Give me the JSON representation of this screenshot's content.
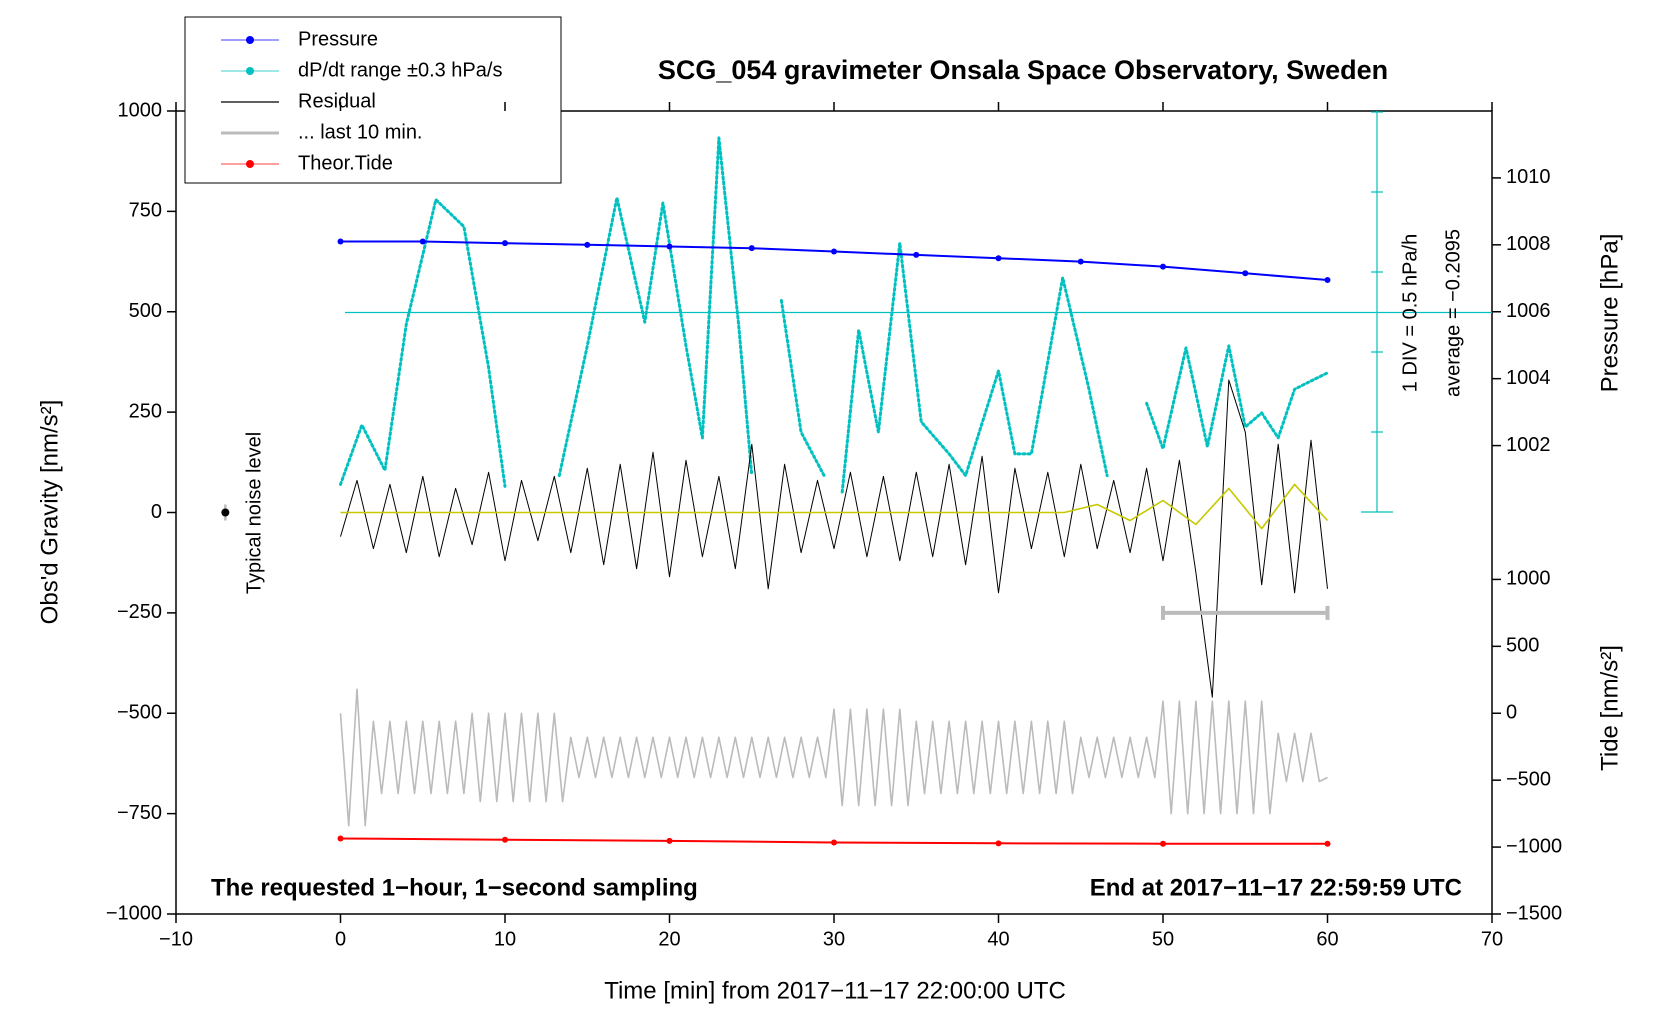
{
  "chart_data": {
    "type": "line",
    "title": "SCG_054 gravimeter Onsala Space Observatory, Sweden",
    "xlabel": "Time [min] from 2017−11−17 22:00:00 UTC",
    "ylabel": "Obs'd Gravity [nm/s²]",
    "y2label": "Pressure [hPa]",
    "y3label": "Tide [nm/s²]",
    "annotations": [
      "The requested 1−hour, 1−second sampling",
      "End at 2017−11−17 22:59:59 UTC",
      "1 DIV = 0.5 hPa/h",
      "average = −0.2095"
    ],
    "noise_level": {
      "label": "Typical noise level",
      "x": {
        "value": -7,
        "label": "−7"
      },
      "value": 0,
      "error": 20
    },
    "xlim": [
      -10,
      70
    ],
    "xticks": [
      {
        "value": -10,
        "label": "−10"
      },
      0,
      10,
      20,
      30,
      40,
      50,
      60,
      70
    ],
    "ylim": [
      -1000,
      1000
    ],
    "yticks": [
      {
        "value": -1000,
        "label": "−1000"
      },
      {
        "value": -750,
        "label": "−750"
      },
      {
        "value": -500,
        "label": "−500"
      },
      {
        "value": -250,
        "label": "−250"
      },
      0,
      250,
      500,
      750,
      1000
    ],
    "y2lim": [
      988,
      1012
    ],
    "y2ticks": [
      1002,
      1004,
      1006,
      1008,
      1010
    ],
    "y3lim": [
      -1500,
      4500
    ],
    "y3ticks": [
      {
        "value": -1500,
        "label": "−1500"
      },
      {
        "value": -1000,
        "label": "−1000"
      },
      {
        "value": -500,
        "label": "−500"
      },
      0,
      500,
      1000
    ],
    "series": [
      {
        "name": "Pressure",
        "color": "#0000ff",
        "axis": "y2",
        "marker": true,
        "x": [
          0,
          5,
          10,
          15,
          20,
          25,
          30,
          35,
          40,
          45,
          50,
          55,
          60
        ],
        "values": [
          1008.1,
          1008.1,
          1008.05,
          1008.0,
          1007.95,
          1007.9,
          1007.8,
          1007.7,
          1007.6,
          1007.5,
          1007.35,
          1007.15,
          1006.95
        ]
      },
      {
        "name": "dP/dt range ±0.3 hPa/s",
        "color": "#00c0c0",
        "axis": "y",
        "marker": true,
        "dotted": true,
        "x": [
          0,
          1.3,
          2.7,
          4,
          5.8,
          7.5,
          9,
          10,
          11.5,
          13.3,
          15,
          16.8,
          18.5,
          19.6,
          21,
          22,
          23,
          24.2,
          25,
          26,
          26.8,
          28,
          29.4,
          30,
          30.5,
          31.5,
          32.7,
          34,
          35.3,
          37,
          38,
          40,
          41,
          42,
          43.9,
          45.5,
          46.6,
          48,
          49,
          50,
          51.4,
          52.7,
          54,
          55,
          56,
          57,
          58,
          60
        ],
        "values": [
          70,
          218,
          105,
          469,
          779,
          712,
          361,
          65,
          null,
          92,
          415,
          784,
          474,
          771,
          415,
          186,
          933,
          469,
          92,
          null,
          528,
          200,
          92,
          null,
          51,
          455,
          200,
          671,
          226,
          146,
          92,
          353,
          146,
          146,
          585,
          307,
          92,
          null,
          272,
          159,
          410,
          164,
          415,
          213,
          248,
          186,
          307,
          348
        ]
      },
      {
        "name": "Residual",
        "color": "#000000",
        "axis": "y",
        "x": [
          0,
          1,
          2,
          3,
          4,
          5,
          6,
          7,
          8,
          9,
          10,
          11,
          12,
          13,
          14,
          15,
          16,
          17,
          18,
          19,
          20,
          21,
          22,
          23,
          24,
          25,
          26,
          27,
          28,
          29,
          30,
          31,
          32,
          33,
          34,
          35,
          36,
          37,
          38,
          39,
          40,
          41,
          42,
          43,
          44,
          45,
          46,
          47,
          48,
          49,
          50,
          51,
          52,
          53,
          54,
          55,
          56,
          57,
          58,
          59,
          60
        ],
        "values": [
          -60,
          80,
          -90,
          70,
          -100,
          90,
          -110,
          60,
          -80,
          100,
          -120,
          80,
          -70,
          90,
          -100,
          110,
          -130,
          120,
          -140,
          150,
          -160,
          130,
          -110,
          90,
          -140,
          170,
          -190,
          120,
          -100,
          80,
          -90,
          100,
          -110,
          90,
          -120,
          100,
          -110,
          120,
          -130,
          140,
          -200,
          110,
          -90,
          100,
          -110,
          120,
          -90,
          80,
          -100,
          110,
          -120,
          130,
          -150,
          -460,
          330,
          200,
          -180,
          170,
          -200,
          180,
          -190
        ]
      },
      {
        "name": "... last 10 min.",
        "color": "#bbbbbb",
        "axis": "y",
        "caps": true,
        "x": [
          50,
          60
        ],
        "values": [
          -250,
          -250
        ]
      },
      {
        "name": "Theor.Tide",
        "color": "#ff0000",
        "axis": "y",
        "marker": true,
        "x": [
          0,
          10,
          20,
          30,
          40,
          50,
          60
        ],
        "values": [
          -812,
          -815,
          -818,
          -822,
          -824,
          -825,
          -825
        ]
      },
      {
        "color": "#bbbbbb",
        "axis": "y",
        "x": [
          0,
          0.5,
          1,
          1.5,
          2,
          2.5,
          3,
          3.5,
          4,
          4.5,
          5,
          5.5,
          6,
          6.5,
          7,
          7.5,
          8,
          8.5,
          9,
          9.5,
          10,
          10.5,
          11,
          11.5,
          12,
          12.5,
          13,
          13.5,
          14,
          14.5,
          15,
          15.5,
          16,
          16.5,
          17,
          17.5,
          18,
          18.5,
          19,
          19.5,
          20,
          20.5,
          21,
          21.5,
          22,
          22.5,
          23,
          23.5,
          24,
          24.5,
          25,
          25.5,
          26,
          26.5,
          27,
          27.5,
          28,
          28.5,
          29,
          29.5,
          30,
          30.5,
          31,
          31.5,
          32,
          32.5,
          33,
          33.5,
          34,
          34.5,
          35,
          35.5,
          36,
          36.5,
          37,
          37.5,
          38,
          38.5,
          39,
          39.5,
          40,
          40.5,
          41,
          41.5,
          42,
          42.5,
          43,
          43.5,
          44,
          44.5,
          45,
          45.5,
          46,
          46.5,
          47,
          47.5,
          48,
          48.5,
          49,
          49.5,
          50,
          50.5,
          51,
          51.5,
          52,
          52.5,
          53,
          53.5,
          54,
          54.5,
          55,
          55.5,
          56,
          56.5,
          57,
          57.5,
          58,
          58.5,
          59,
          59.5,
          60
        ],
        "values": [
          -500,
          -780,
          -440,
          -780,
          -520,
          -700,
          -520,
          -700,
          -520,
          -700,
          -520,
          -700,
          -520,
          -700,
          -520,
          -700,
          -500,
          -720,
          -500,
          -720,
          -500,
          -720,
          -500,
          -720,
          -500,
          -720,
          -500,
          -720,
          -560,
          -660,
          -560,
          -660,
          -560,
          -660,
          -560,
          -660,
          -560,
          -660,
          -560,
          -660,
          -560,
          -660,
          -560,
          -660,
          -560,
          -660,
          -560,
          -660,
          -560,
          -660,
          -560,
          -660,
          -560,
          -660,
          -560,
          -660,
          -560,
          -660,
          -560,
          -660,
          -490,
          -730,
          -490,
          -730,
          -490,
          -730,
          -490,
          -730,
          -490,
          -730,
          -520,
          -700,
          -520,
          -700,
          -520,
          -700,
          -520,
          -700,
          -520,
          -700,
          -520,
          -700,
          -520,
          -700,
          -520,
          -700,
          -520,
          -700,
          -520,
          -700,
          -560,
          -660,
          -560,
          -660,
          -560,
          -660,
          -560,
          -660,
          -560,
          -660,
          -470,
          -750,
          -470,
          -750,
          -470,
          -750,
          -470,
          -750,
          -470,
          -750,
          -470,
          -750,
          -470,
          -750,
          -550,
          -670,
          -550,
          -670,
          -550,
          -670,
          -660
        ]
      },
      {
        "color": "#c8c800",
        "axis": "y",
        "x": [
          0,
          2,
          4,
          6,
          8,
          10,
          12,
          14,
          16,
          18,
          20,
          22,
          24,
          26,
          28,
          30,
          32,
          34,
          36,
          38,
          40,
          42,
          44,
          46,
          48,
          50,
          52,
          54,
          56,
          58,
          60
        ],
        "values": [
          0,
          0,
          0,
          0,
          0,
          0,
          0,
          0,
          0,
          0,
          0,
          0,
          0,
          0,
          0,
          0,
          0,
          0,
          0,
          0,
          0,
          0,
          0,
          20,
          -20,
          30,
          -30,
          60,
          -40,
          70,
          -20
        ]
      }
    ]
  }
}
